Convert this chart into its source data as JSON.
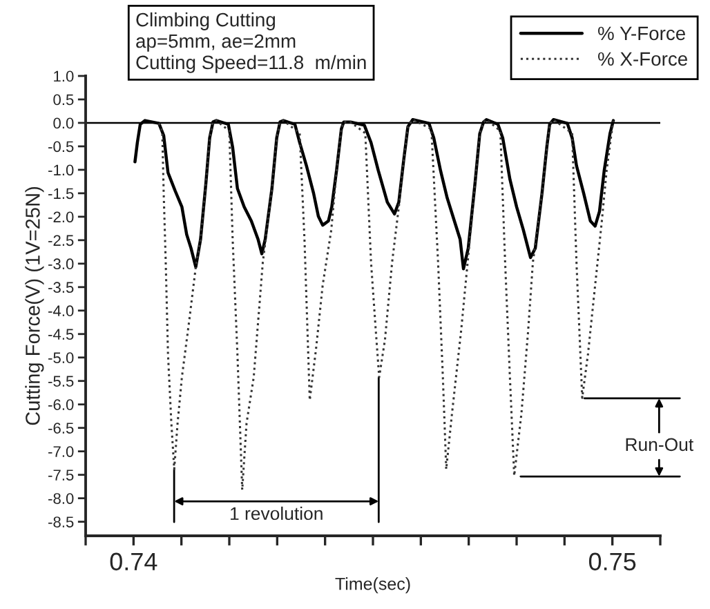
{
  "chart_data": {
    "type": "line",
    "xlabel": "Time(sec)",
    "ylabel": "Cutting Force(V) (1V=25N)",
    "annotations": [
      "Climbing Cutting",
      "ap=5mm, ae=2mm",
      "Cutting Speed=11.8  m/min",
      "1 revolution",
      "Run-Out"
    ],
    "xlim": [
      0.739,
      0.751
    ],
    "ylim": [
      -8.8,
      1.0
    ],
    "xticks": [
      {
        "value": 0.739,
        "label": null
      },
      {
        "value": 0.74,
        "label": "0.74"
      },
      {
        "value": 0.741,
        "label": null
      },
      {
        "value": 0.742,
        "label": null
      },
      {
        "value": 0.743,
        "label": null
      },
      {
        "value": 0.744,
        "label": null
      },
      {
        "value": 0.745,
        "label": null
      },
      {
        "value": 0.746,
        "label": null
      },
      {
        "value": 0.747,
        "label": null
      },
      {
        "value": 0.748,
        "label": null
      },
      {
        "value": 0.749,
        "label": null
      },
      {
        "value": 0.75,
        "label": "0.75"
      },
      {
        "value": 0.751,
        "label": null
      }
    ],
    "yticks": [
      {
        "value": 1,
        "label": "1.0"
      },
      0.5,
      {
        "value": 0,
        "label": "0.0"
      },
      -0.5,
      {
        "value": -1,
        "label": "-1.0"
      },
      -1.5,
      {
        "value": -2,
        "label": "-2.0"
      },
      -2.5,
      {
        "value": -3,
        "label": "-3.0"
      },
      -3.5,
      {
        "value": -4,
        "label": "-4.0"
      },
      -4.5,
      {
        "value": -5,
        "label": "-5.0"
      },
      -5.5,
      {
        "value": -6,
        "label": "-6.0"
      },
      -6.5,
      {
        "value": -7,
        "label": "-7.0"
      },
      -7.5,
      {
        "value": -8,
        "label": "-8.0"
      },
      -8.5
    ],
    "ref_lines": [
      {
        "axis": "y",
        "value": 0.0,
        "color": "#000000"
      }
    ],
    "legend": "top right",
    "grid": false,
    "series": [
      {
        "name": "% Y-Force",
        "color": "#000000",
        "line_style": "solid",
        "x": [
          0.74003,
          0.74008,
          0.74014,
          0.74024,
          0.74053,
          0.74063,
          0.74072,
          0.74087,
          0.74101,
          0.74111,
          0.7412,
          0.7413,
          0.7414,
          0.74151,
          0.74159,
          0.74166,
          0.74173,
          0.74198,
          0.74207,
          0.74217,
          0.74231,
          0.74246,
          0.7426,
          0.74268,
          0.74275,
          0.74289,
          0.74299,
          0.74306,
          0.74313,
          0.74337,
          0.74347,
          0.74361,
          0.74376,
          0.74386,
          0.74395,
          0.74407,
          0.74414,
          0.74424,
          0.74434,
          0.74439,
          0.74453,
          0.74482,
          0.74496,
          0.74511,
          0.7453,
          0.74545,
          0.74554,
          0.74564,
          0.74573,
          0.74583,
          0.74617,
          0.74627,
          0.74641,
          0.74655,
          0.7467,
          0.74682,
          0.74689,
          0.74699,
          0.74713,
          0.74723,
          0.74731,
          0.74737,
          0.74761,
          0.74771,
          0.74786,
          0.748,
          0.74814,
          0.74829,
          0.74839,
          0.74853,
          0.74863,
          0.74869,
          0.74877,
          0.74906,
          0.74916,
          0.74925,
          0.7494,
          0.74954,
          0.74964,
          0.74973,
          0.74983,
          0.74995,
          0.75002
        ],
        "values": [
          -0.83,
          -0.42,
          -0.03,
          0.05,
          -0.01,
          -0.27,
          -1.06,
          -1.45,
          -1.79,
          -2.38,
          -2.67,
          -3.07,
          -2.48,
          -1.3,
          -0.32,
          0.02,
          0.05,
          -0.03,
          -0.52,
          -1.4,
          -1.79,
          -2.09,
          -2.48,
          -2.79,
          -2.48,
          -1.4,
          -0.32,
          0.02,
          0.05,
          -0.03,
          -0.42,
          -0.91,
          -1.5,
          -1.99,
          -2.18,
          -2.09,
          -1.79,
          -1.01,
          -0.13,
          0.02,
          0.02,
          -0.05,
          -0.42,
          -1.01,
          -1.69,
          -1.94,
          -1.69,
          -0.81,
          -0.08,
          0.07,
          -0.01,
          -0.32,
          -1.01,
          -1.6,
          -2.09,
          -2.48,
          -3.11,
          -2.67,
          -1.3,
          -0.23,
          0.02,
          0.07,
          -0.03,
          -0.32,
          -1.2,
          -1.79,
          -2.28,
          -2.87,
          -2.67,
          -1.5,
          -0.52,
          -0.03,
          0.07,
          -0.01,
          -0.32,
          -0.91,
          -1.5,
          -2.09,
          -2.2,
          -1.89,
          -1.01,
          -0.23,
          0.05
        ]
      },
      {
        "name": "% X-Force",
        "color": "#333333",
        "line_style": "dotted",
        "x": [
          0.74053,
          0.7406,
          0.74063,
          0.74067,
          0.74072,
          0.74079,
          0.74085,
          0.74092,
          0.74101,
          0.74116,
          0.7413,
          0.7414,
          0.74151,
          0.74159,
          0.74166,
          0.74173,
          0.742,
          0.74207,
          0.74217,
          0.74227,
          0.74236,
          0.74251,
          0.7427,
          0.74289,
          0.74299,
          0.74306,
          0.74313,
          0.74347,
          0.74357,
          0.74368,
          0.74381,
          0.74395,
          0.74413,
          0.74424,
          0.74434,
          0.74439,
          0.74453,
          0.74484,
          0.74496,
          0.74506,
          0.74513,
          0.74525,
          0.7454,
          0.74554,
          0.74564,
          0.74573,
          0.74583,
          0.74622,
          0.74636,
          0.74646,
          0.74653,
          0.74665,
          0.74684,
          0.74696,
          0.74713,
          0.74723,
          0.74731,
          0.74737,
          0.74766,
          0.74776,
          0.74786,
          0.74795,
          0.7481,
          0.74824,
          0.74834,
          0.74853,
          0.74863,
          0.74869,
          0.74877,
          0.74916,
          0.74925,
          0.74937,
          0.74949,
          0.74964,
          0.74978,
          0.74988,
          0.74998,
          0.75002
        ],
        "values": [
          -0.01,
          -0.17,
          -1.5,
          -2.87,
          -4.93,
          -6.4,
          -7.38,
          -6.4,
          -5.42,
          -4.24,
          -3.07,
          -2.48,
          -1.3,
          -0.32,
          0.02,
          0.05,
          -0.17,
          -2.48,
          -4.93,
          -7.82,
          -6.4,
          -5.42,
          -2.97,
          -1.4,
          -0.32,
          0.02,
          0.05,
          -0.22,
          -2.48,
          -5.91,
          -4.83,
          -3.46,
          -2.28,
          -1.01,
          -0.13,
          0.02,
          0.02,
          -0.22,
          -2.97,
          -4.44,
          -5.42,
          -4.63,
          -2.97,
          -1.79,
          -0.81,
          -0.08,
          0.07,
          -0.13,
          -2.97,
          -5.42,
          -7.38,
          -6.2,
          -4.44,
          -3.16,
          -1.3,
          -0.23,
          0.02,
          0.07,
          -0.17,
          -2.97,
          -5.42,
          -7.52,
          -6.2,
          -4.44,
          -2.97,
          -1.5,
          -0.52,
          -0.03,
          0.07,
          -0.22,
          -2.97,
          -5.86,
          -4.93,
          -3.46,
          -2.09,
          -1.01,
          -0.23,
          0.05
        ]
      }
    ]
  }
}
